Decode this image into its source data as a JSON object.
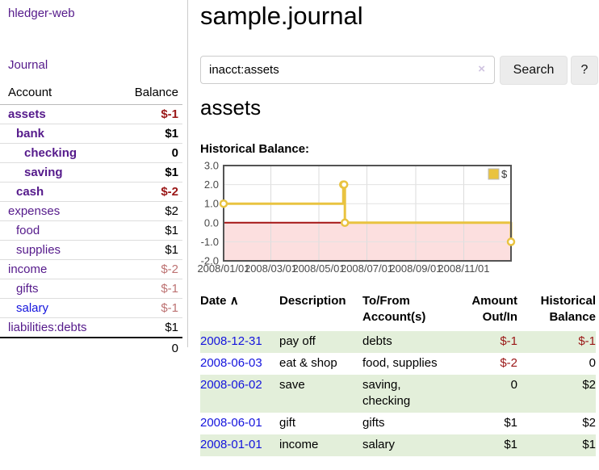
{
  "app": {
    "brand": "hledger-web",
    "nav_journal": "Journal",
    "title": "sample.journal"
  },
  "search": {
    "value": "inacct:assets",
    "clear_icon": "×",
    "button_label": "Search",
    "help_label": "?"
  },
  "account_heading": "assets",
  "chart_section_label": "Historical Balance:",
  "sidebar": {
    "columns": {
      "account": "Account",
      "balance": "Balance"
    },
    "accounts": [
      {
        "name": "assets",
        "indent": 1,
        "bold": true,
        "link_color": "purple",
        "balance": "$-1",
        "tone": "neg-strong"
      },
      {
        "name": "bank",
        "indent": 2,
        "bold": true,
        "link_color": "purple",
        "balance": "$1",
        "tone": ""
      },
      {
        "name": "checking",
        "indent": 3,
        "bold": true,
        "link_color": "purple",
        "balance": "0",
        "tone": ""
      },
      {
        "name": "saving",
        "indent": 3,
        "bold": true,
        "link_color": "purple",
        "balance": "$1",
        "tone": ""
      },
      {
        "name": "cash",
        "indent": 2,
        "bold": true,
        "link_color": "purple",
        "balance": "$-2",
        "tone": "neg-strong"
      },
      {
        "name": "expenses",
        "indent": 1,
        "bold": false,
        "link_color": "purple",
        "balance": "$2",
        "tone": ""
      },
      {
        "name": "food",
        "indent": 2,
        "bold": false,
        "link_color": "purple",
        "balance": "$1",
        "tone": ""
      },
      {
        "name": "supplies",
        "indent": 2,
        "bold": false,
        "link_color": "purple",
        "balance": "$1",
        "tone": ""
      },
      {
        "name": "income",
        "indent": 1,
        "bold": false,
        "link_color": "purple",
        "balance": "$-2",
        "tone": "neg-soft"
      },
      {
        "name": "gifts",
        "indent": 2,
        "bold": false,
        "link_color": "purple",
        "balance": "$-1",
        "tone": "neg-soft"
      },
      {
        "name": "salary",
        "indent": 2,
        "bold": false,
        "link_color": "blue",
        "balance": "$-1",
        "tone": "neg-soft"
      },
      {
        "name": "liabilities:debts",
        "indent": 1,
        "bold": false,
        "link_color": "purple",
        "balance": "$1",
        "tone": ""
      }
    ],
    "total": "0"
  },
  "chart_data": {
    "type": "line",
    "title": "Historical Balance",
    "step": true,
    "series": [
      {
        "name": "$",
        "color": "#e9c340",
        "points": [
          [
            "2008-01-01",
            1
          ],
          [
            "2008-06-01",
            2
          ],
          [
            "2008-06-02",
            2
          ],
          [
            "2008-06-03",
            0
          ],
          [
            "2008-12-31",
            -1
          ]
        ]
      }
    ],
    "x_ticks": [
      "2008/01/01",
      "2008/03/01",
      "2008/05/01",
      "2008/07/01",
      "2008/09/01",
      "2008/11/01"
    ],
    "y_ticks": [
      3.0,
      2.0,
      1.0,
      0.0,
      -1.0,
      -2.0
    ],
    "xlim": [
      "2008-01-01",
      "2008-12-31"
    ],
    "ylim": [
      -2,
      3
    ],
    "grid": true,
    "legend": {
      "label": "$",
      "position": "top-right"
    },
    "negative_region_fill": "#fcdfdf",
    "zero_line_color": "#a51515",
    "border_color": "#545454"
  },
  "register": {
    "columns": {
      "date": "Date",
      "date_sort_icon": "∧",
      "description": "Description",
      "tofrom": "To/From Account(s)",
      "amount": "Amount Out/In",
      "historical": "Historical Balance"
    },
    "rows": [
      {
        "date": "2008-12-31",
        "description": "pay off",
        "accounts": "debts",
        "amount": "$-1",
        "amount_negative": true,
        "historical": "$-1",
        "historical_negative": true
      },
      {
        "date": "2008-06-03",
        "description": "eat & shop",
        "accounts": "food, supplies",
        "amount": "$-2",
        "amount_negative": true,
        "historical": "0",
        "historical_negative": false
      },
      {
        "date": "2008-06-02",
        "description": "save",
        "accounts": "saving, checking",
        "amount": "0",
        "amount_negative": false,
        "historical": "$2",
        "historical_negative": false
      },
      {
        "date": "2008-06-01",
        "description": "gift",
        "accounts": "gifts",
        "amount": "$1",
        "amount_negative": false,
        "historical": "$2",
        "historical_negative": false
      },
      {
        "date": "2008-01-01",
        "description": "income",
        "accounts": "salary",
        "amount": "$1",
        "amount_negative": false,
        "historical": "$1",
        "historical_negative": false
      }
    ]
  },
  "colors": {
    "link_purple": "#551a8b",
    "link_blue": "#1414dd",
    "negative_strong": "#9a1616",
    "negative_soft": "#bd7272",
    "row_stripe_green": "#e3efda",
    "accent_gold": "#e9c340",
    "negative_region_pink": "#fcdfdf",
    "zero_line_red": "#a51515"
  }
}
